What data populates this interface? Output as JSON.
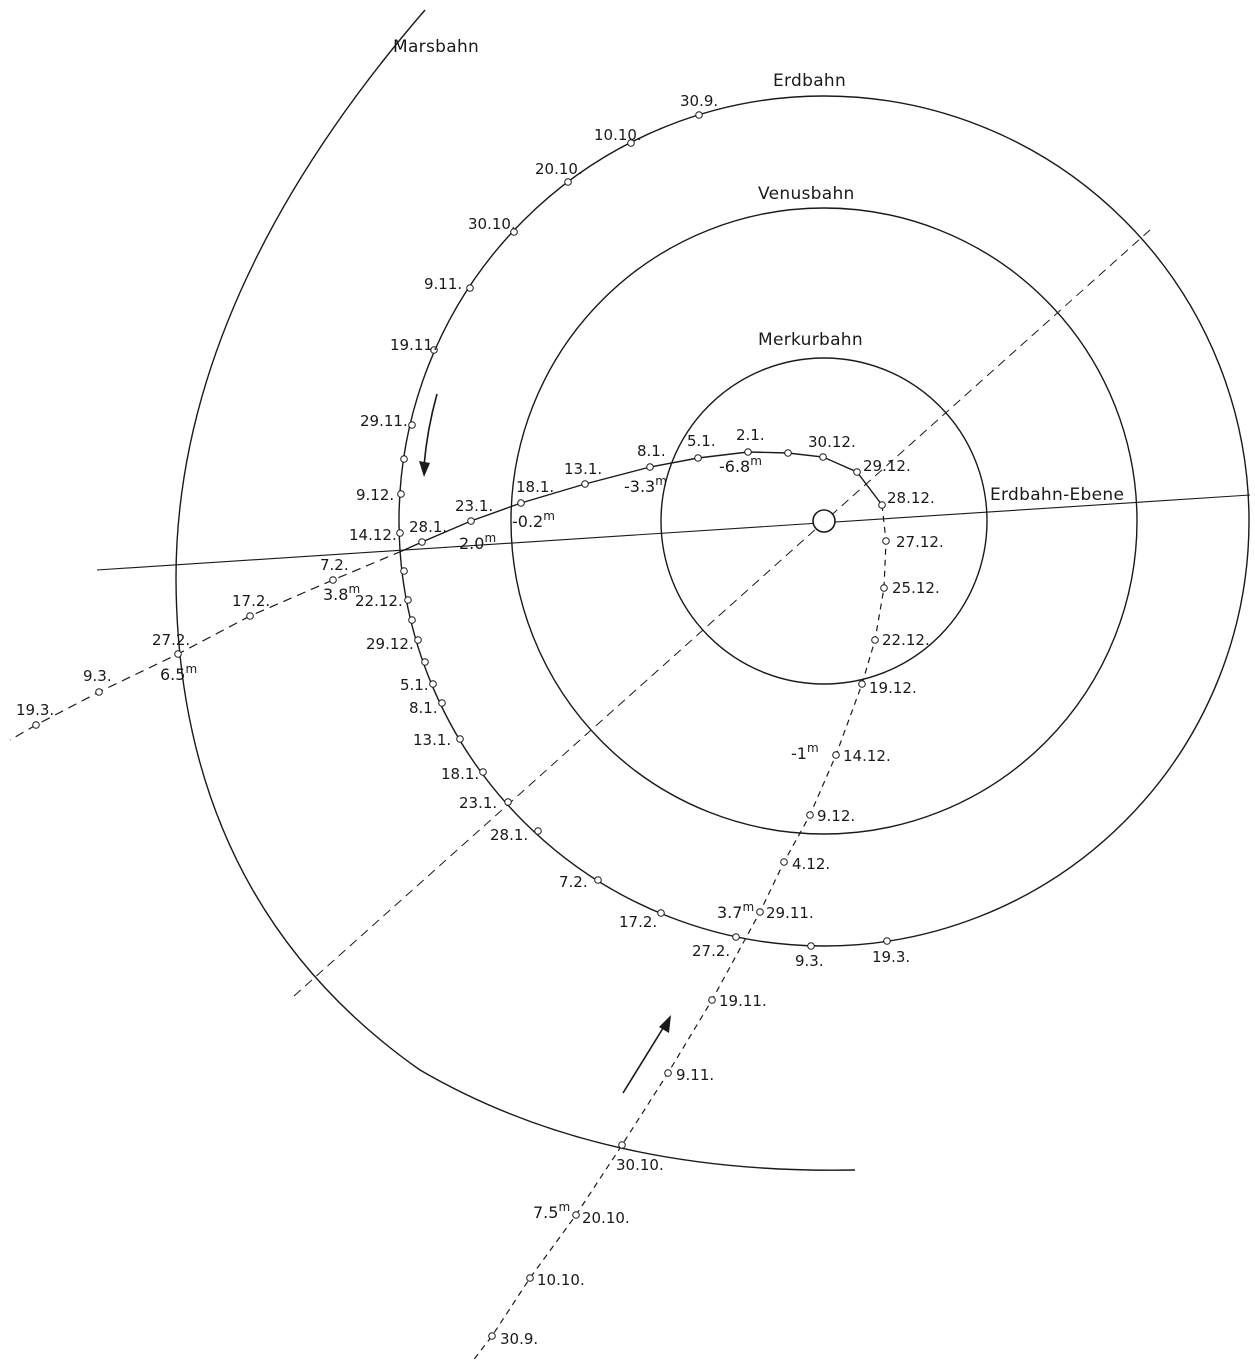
{
  "orbits": {
    "mars": "Marsbahn",
    "earth": "Erdbahn",
    "venus": "Venusbahn",
    "mercury": "Merkurbahn",
    "ecliptic": "Erdbahn-Ebene"
  },
  "earth_dates": [
    "30.9.",
    "10.10.",
    "20.10.",
    "30.10.",
    "9.11.",
    "19.11.",
    "29.11.",
    "9.12.",
    "14.12.",
    "22.12.",
    "29.12.",
    "5.1.",
    "8.1.",
    "13.1.",
    "18.1.",
    "23.1.",
    "28.1.",
    "7.2.",
    "17.2.",
    "27.2.",
    "9.3.",
    "19.3."
  ],
  "comet_upper_dates": [
    "28.1.",
    "23.1.",
    "18.1.",
    "13.1.",
    "8.1.",
    "5.1.",
    "2.1.",
    "30.12.",
    "29.12.",
    "28.12."
  ],
  "comet_lower_dates": [
    "27.12.",
    "25.12.",
    "22.12.",
    "19.12.",
    "14.12.",
    "9.12.",
    "4.12.",
    "29.11.",
    "19.11.",
    "9.11.",
    "30.10.",
    "20.10.",
    "10.10.",
    "30.9."
  ],
  "comet_left_dates": [
    "7.2.",
    "17.2.",
    "27.2.",
    "9.3.",
    "19.3."
  ],
  "magnitudes": {
    "m1": "-6.8",
    "m2": "-3.3",
    "m3": "-0.2",
    "m4": "2.0",
    "m5": "3.8",
    "m6": "6.5",
    "m7": "-1",
    "m8": "3.7",
    "m9": "7.5",
    "unit": "m"
  }
}
